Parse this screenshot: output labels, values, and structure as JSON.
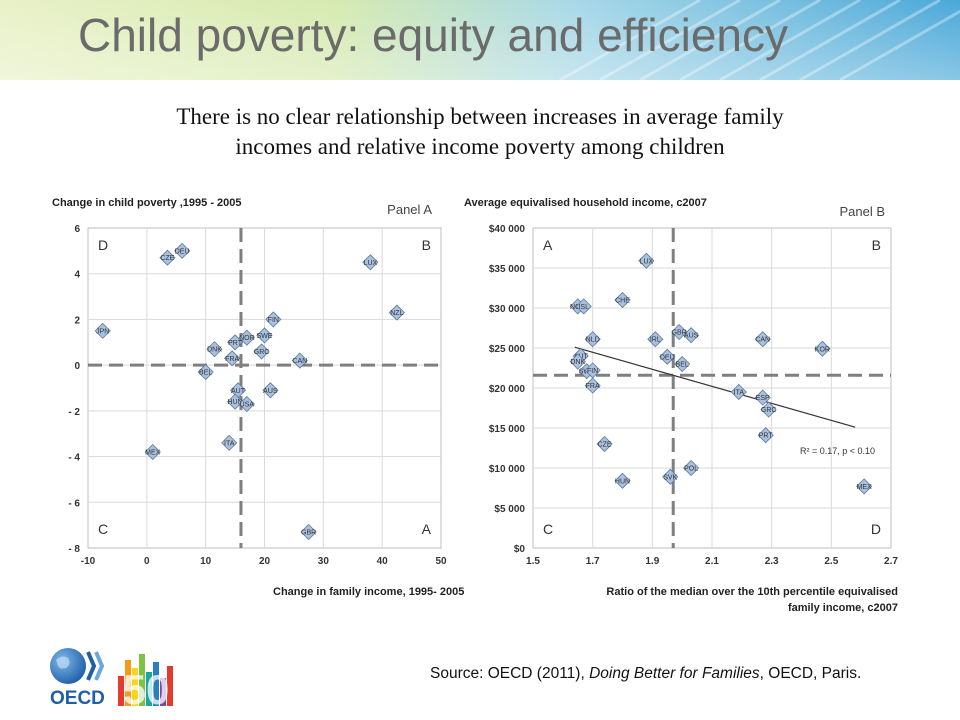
{
  "slide": {
    "title": "Child poverty: equity and efficiency",
    "subtitle_line1": "There is no clear relationship between increases in average family",
    "subtitle_line2": "incomes and relative income poverty among children",
    "source_prefix": "Source: OECD (2011), ",
    "source_title": "Doing Better for Families",
    "source_suffix": ", OECD, Paris.",
    "logo_text": "OECD",
    "logo_number": "50"
  },
  "colors": {
    "marker_fill": "#a9c0de",
    "marker_stroke": "#5a7aa0",
    "divider": "#7f7f7f",
    "title_text": "#6b6b6b",
    "oecd_blue": "#1f5fa8",
    "fifty_colors": [
      "#e53b2f",
      "#f39c1a",
      "#f6d51e",
      "#7dc242",
      "#1aa6a0",
      "#2a7fc0",
      "#7b4aa0"
    ]
  },
  "chart_data": [
    {
      "type": "scatter",
      "panel_label": "Panel A",
      "title": "Change in child poverty ,1995 - 2005",
      "xlabel": "Change in family income, 1995- 2005",
      "ylabel": "",
      "xlim": [
        -10,
        50
      ],
      "ylim": [
        -8,
        6
      ],
      "xticks": [
        -10,
        0,
        10,
        20,
        30,
        40,
        50
      ],
      "xtick_labels": [
        "-10",
        "0",
        "10",
        "20",
        "30",
        "40",
        "50"
      ],
      "yticks": [
        6,
        4,
        2,
        0,
        -2,
        -4,
        -6,
        -8
      ],
      "ytick_labels": [
        "6",
        "4",
        "2",
        "0",
        "- 2",
        "- 4",
        "- 6",
        "- 8"
      ],
      "grid": true,
      "divider_x": 16,
      "divider_y": 0,
      "quadrant_labels": [
        {
          "text": "D",
          "position": "top-left"
        },
        {
          "text": "B",
          "position": "top-right"
        },
        {
          "text": "C",
          "position": "bottom-left"
        },
        {
          "text": "A",
          "position": "bottom-right"
        }
      ],
      "points": [
        {
          "label": "JPN",
          "x": -7.5,
          "y": 1.5
        },
        {
          "label": "CZE",
          "x": 3.5,
          "y": 4.7
        },
        {
          "label": "DEU",
          "x": 6,
          "y": 5.0
        },
        {
          "label": "LUX",
          "x": 38,
          "y": 4.5
        },
        {
          "label": "NZL",
          "x": 42.5,
          "y": 2.3
        },
        {
          "label": "FIN",
          "x": 21.5,
          "y": 2.0
        },
        {
          "label": "NOR",
          "x": 17,
          "y": 1.2
        },
        {
          "label": "SWE",
          "x": 20,
          "y": 1.3
        },
        {
          "label": "PRT",
          "x": 15,
          "y": 1.0
        },
        {
          "label": "GRC",
          "x": 19.5,
          "y": 0.6
        },
        {
          "label": "DNK",
          "x": 11.5,
          "y": 0.7
        },
        {
          "label": "FRA",
          "x": 14.5,
          "y": 0.3
        },
        {
          "label": "CAN",
          "x": 26,
          "y": 0.2
        },
        {
          "label": "BEL",
          "x": 10,
          "y": -0.3
        },
        {
          "label": "AUT",
          "x": 15.5,
          "y": -1.1
        },
        {
          "label": "AUS",
          "x": 21,
          "y": -1.1
        },
        {
          "label": "HUN",
          "x": 15,
          "y": -1.6
        },
        {
          "label": "USA",
          "x": 17,
          "y": -1.7
        },
        {
          "label": "ITA",
          "x": 14,
          "y": -3.4
        },
        {
          "label": "MEX",
          "x": 1,
          "y": -3.8
        },
        {
          "label": "GBR",
          "x": 27.5,
          "y": -7.3
        }
      ]
    },
    {
      "type": "scatter",
      "panel_label": "Panel B",
      "title": "Average equivalised household income, c2007",
      "xlabel_line1": "Ratio of the median over the 10th percentile equivalised",
      "xlabel_line2": "family income, c2007",
      "ylabel": "",
      "xlim": [
        1.5,
        2.7
      ],
      "ylim": [
        0,
        40000
      ],
      "xticks": [
        1.5,
        1.7,
        1.9,
        2.1,
        2.3,
        2.5,
        2.7
      ],
      "xtick_labels": [
        "1.5",
        "1.7",
        "1.9",
        "2.1",
        "2.3",
        "2.5",
        "2.7"
      ],
      "yticks": [
        40000,
        35000,
        30000,
        25000,
        20000,
        15000,
        10000,
        5000,
        0
      ],
      "ytick_labels": [
        "$40 000",
        "$35 000",
        "$30 000",
        "$25 000",
        "$20 000",
        "$15 000",
        "$10 000",
        "$5 000",
        "$0"
      ],
      "grid": true,
      "divider_x": 1.97,
      "divider_y": 21600,
      "quadrant_labels": [
        {
          "text": "A",
          "position": "top-left"
        },
        {
          "text": "B",
          "position": "top-right"
        },
        {
          "text": "C",
          "position": "bottom-left"
        },
        {
          "text": "D",
          "position": "bottom-right"
        }
      ],
      "trendline": {
        "x": [
          1.64,
          2.58
        ],
        "y": [
          25100,
          15100
        ]
      },
      "annotation": "R² = 0.17, p < 0.10",
      "points": [
        {
          "label": "LUX",
          "x": 1.88,
          "y": 35900
        },
        {
          "label": "CHE",
          "x": 1.8,
          "y": 31000
        },
        {
          "label": "NOR",
          "x": 1.65,
          "y": 30200
        },
        {
          "label": "ISL",
          "x": 1.67,
          "y": 30200
        },
        {
          "label": "NLD",
          "x": 1.7,
          "y": 26100
        },
        {
          "label": "IRL",
          "x": 1.91,
          "y": 26100
        },
        {
          "label": "GBR",
          "x": 1.99,
          "y": 27000
        },
        {
          "label": "AUS",
          "x": 2.03,
          "y": 26600
        },
        {
          "label": "CAN",
          "x": 2.27,
          "y": 26100
        },
        {
          "label": "KOR",
          "x": 2.47,
          "y": 24900
        },
        {
          "label": "AUT",
          "x": 1.66,
          "y": 24000
        },
        {
          "label": "DNK",
          "x": 1.65,
          "y": 23300
        },
        {
          "label": "DEU",
          "x": 1.95,
          "y": 23900
        },
        {
          "label": "BEL",
          "x": 2.0,
          "y": 23000
        },
        {
          "label": "SWE",
          "x": 1.68,
          "y": 22100
        },
        {
          "label": "FIN",
          "x": 1.7,
          "y": 22200
        },
        {
          "label": "FRA",
          "x": 1.7,
          "y": 20300
        },
        {
          "label": "ITA",
          "x": 2.19,
          "y": 19500
        },
        {
          "label": "ESP",
          "x": 2.27,
          "y": 18800
        },
        {
          "label": "GRC",
          "x": 2.29,
          "y": 17300
        },
        {
          "label": "PRT",
          "x": 2.28,
          "y": 14100
        },
        {
          "label": "CZE",
          "x": 1.74,
          "y": 13000
        },
        {
          "label": "POL",
          "x": 2.03,
          "y": 10000
        },
        {
          "label": "SVK",
          "x": 1.96,
          "y": 8900
        },
        {
          "label": "HUN",
          "x": 1.8,
          "y": 8400
        },
        {
          "label": "MEX",
          "x": 2.61,
          "y": 7700
        }
      ]
    }
  ]
}
